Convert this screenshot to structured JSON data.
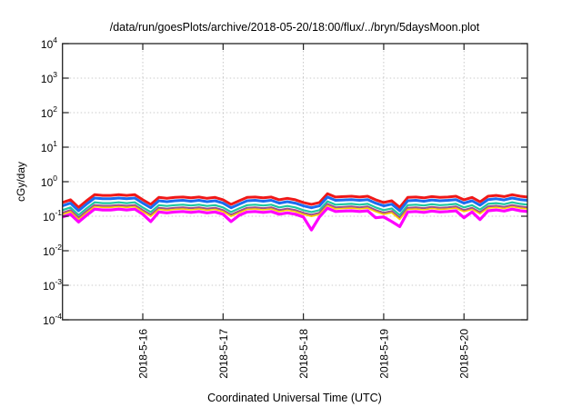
{
  "chart_data": {
    "type": "line",
    "title": "/data/run/goesPlots/archive/2018-05-20/18:00/flux/../bryn/5daysMoon.plot",
    "xlabel": "Coordinated Universal Time (UTC)",
    "ylabel": "cGy/day",
    "yscale": "log",
    "ylim": [
      0.0001,
      10000
    ],
    "ytick_base": "10",
    "ytick_exponents": [
      4,
      3,
      2,
      1,
      0,
      -1,
      -2,
      -3,
      -4
    ],
    "x_units": "days since 2018-05-15 00:00 UTC",
    "xlim": [
      0,
      5.79
    ],
    "xticks": [
      1,
      2,
      3,
      4,
      5
    ],
    "xtick_labels": [
      "2018-5-16",
      "2018-5-17",
      "2018-5-18",
      "2018-5-19",
      "2018-5-20"
    ],
    "grid": true,
    "x": [
      0,
      0.1,
      0.2,
      0.3,
      0.4,
      0.5,
      0.6,
      0.7,
      0.8,
      0.9,
      1.0,
      1.1,
      1.2,
      1.3,
      1.4,
      1.5,
      1.6,
      1.7,
      1.8,
      1.9,
      2.0,
      2.1,
      2.2,
      2.3,
      2.4,
      2.5,
      2.6,
      2.7,
      2.8,
      2.9,
      3.0,
      3.1,
      3.2,
      3.3,
      3.4,
      3.5,
      3.6,
      3.7,
      3.8,
      3.9,
      4.0,
      4.1,
      4.2,
      4.3,
      4.4,
      4.5,
      4.6,
      4.7,
      4.8,
      4.9,
      5.0,
      5.1,
      5.2,
      5.3,
      5.4,
      5.5,
      5.6,
      5.7,
      5.79
    ],
    "series": [
      {
        "name": "red",
        "color": "#f01818",
        "values": [
          0.25,
          0.3,
          0.18,
          0.28,
          0.42,
          0.4,
          0.4,
          0.42,
          0.4,
          0.42,
          0.3,
          0.22,
          0.35,
          0.33,
          0.35,
          0.36,
          0.34,
          0.36,
          0.33,
          0.35,
          0.3,
          0.22,
          0.28,
          0.35,
          0.36,
          0.34,
          0.36,
          0.3,
          0.33,
          0.3,
          0.25,
          0.22,
          0.25,
          0.45,
          0.36,
          0.37,
          0.38,
          0.36,
          0.38,
          0.3,
          0.25,
          0.28,
          0.18,
          0.35,
          0.36,
          0.34,
          0.37,
          0.35,
          0.36,
          0.38,
          0.3,
          0.35,
          0.26,
          0.38,
          0.4,
          0.37,
          0.42,
          0.38,
          0.36
        ]
      },
      {
        "name": "blue",
        "color": "#1a6cf0",
        "values": [
          0.2,
          0.24,
          0.144,
          0.224,
          0.336,
          0.32,
          0.32,
          0.336,
          0.32,
          0.336,
          0.24,
          0.176,
          0.28,
          0.264,
          0.28,
          0.288,
          0.272,
          0.288,
          0.264,
          0.28,
          0.24,
          0.176,
          0.224,
          0.28,
          0.288,
          0.272,
          0.288,
          0.24,
          0.264,
          0.24,
          0.2,
          0.176,
          0.2,
          0.36,
          0.288,
          0.296,
          0.304,
          0.288,
          0.304,
          0.24,
          0.2,
          0.224,
          0.144,
          0.28,
          0.288,
          0.272,
          0.296,
          0.28,
          0.288,
          0.304,
          0.24,
          0.28,
          0.208,
          0.304,
          0.32,
          0.296,
          0.336,
          0.304,
          0.288
        ]
      },
      {
        "name": "teal",
        "color": "#1ec8a0",
        "values": [
          0.15,
          0.18,
          0.108,
          0.168,
          0.252,
          0.24,
          0.24,
          0.252,
          0.24,
          0.252,
          0.18,
          0.132,
          0.21,
          0.198,
          0.21,
          0.216,
          0.204,
          0.216,
          0.198,
          0.21,
          0.18,
          0.132,
          0.168,
          0.21,
          0.216,
          0.204,
          0.216,
          0.18,
          0.198,
          0.18,
          0.15,
          0.132,
          0.15,
          0.27,
          0.216,
          0.222,
          0.228,
          0.216,
          0.228,
          0.18,
          0.15,
          0.168,
          0.108,
          0.21,
          0.216,
          0.204,
          0.222,
          0.21,
          0.216,
          0.228,
          0.18,
          0.21,
          0.156,
          0.228,
          0.24,
          0.222,
          0.252,
          0.228,
          0.216
        ]
      },
      {
        "name": "purple",
        "color": "#a0508c",
        "values": [
          0.125,
          0.15,
          0.09,
          0.14,
          0.21,
          0.2,
          0.2,
          0.21,
          0.2,
          0.21,
          0.15,
          0.11,
          0.175,
          0.165,
          0.175,
          0.18,
          0.17,
          0.18,
          0.165,
          0.175,
          0.15,
          0.11,
          0.14,
          0.175,
          0.18,
          0.17,
          0.18,
          0.15,
          0.165,
          0.15,
          0.125,
          0.11,
          0.125,
          0.225,
          0.18,
          0.185,
          0.19,
          0.18,
          0.19,
          0.15,
          0.125,
          0.14,
          0.09,
          0.175,
          0.18,
          0.17,
          0.185,
          0.175,
          0.18,
          0.19,
          0.15,
          0.175,
          0.13,
          0.19,
          0.2,
          0.185,
          0.21,
          0.19,
          0.18
        ]
      },
      {
        "name": "yellow",
        "color": "#ffd000",
        "values": [
          0.113,
          0.135,
          0.081,
          0.126,
          0.189,
          0.18,
          0.18,
          0.189,
          0.18,
          0.189,
          0.135,
          0.099,
          0.158,
          0.149,
          0.158,
          0.162,
          0.153,
          0.162,
          0.149,
          0.158,
          0.135,
          0.099,
          0.126,
          0.158,
          0.162,
          0.153,
          0.162,
          0.135,
          0.149,
          0.135,
          0.113,
          0.099,
          0.113,
          0.203,
          0.162,
          0.167,
          0.171,
          0.162,
          0.171,
          0.135,
          0.113,
          0.126,
          0.081,
          0.158,
          0.162,
          0.153,
          0.167,
          0.158,
          0.162,
          0.171,
          0.135,
          0.158,
          0.117,
          0.171,
          0.18,
          0.167,
          0.189,
          0.171,
          0.162
        ]
      },
      {
        "name": "magenta",
        "color": "#ff00ff",
        "values": [
          0.095,
          0.114,
          0.068,
          0.106,
          0.16,
          0.152,
          0.152,
          0.16,
          0.152,
          0.16,
          0.114,
          0.07,
          0.133,
          0.125,
          0.133,
          0.137,
          0.129,
          0.137,
          0.125,
          0.133,
          0.114,
          0.07,
          0.106,
          0.133,
          0.137,
          0.129,
          0.137,
          0.114,
          0.125,
          0.114,
          0.095,
          0.04,
          0.095,
          0.171,
          0.137,
          0.141,
          0.144,
          0.137,
          0.144,
          0.09,
          0.095,
          0.07,
          0.05,
          0.133,
          0.137,
          0.129,
          0.141,
          0.133,
          0.137,
          0.144,
          0.09,
          0.133,
          0.08,
          0.144,
          0.152,
          0.141,
          0.16,
          0.144,
          0.137
        ]
      }
    ]
  }
}
